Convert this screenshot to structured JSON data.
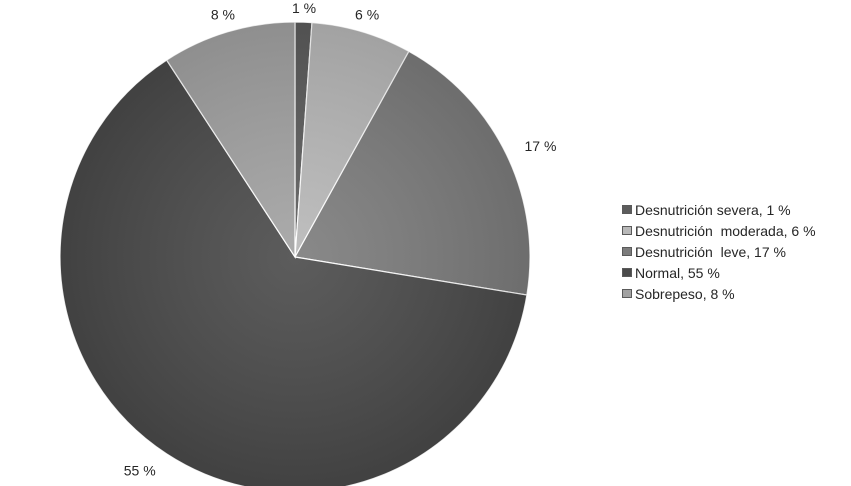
{
  "chart_data": {
    "type": "pie",
    "title": "",
    "slices": [
      {
        "label": "Desnutrición severa",
        "value": 1,
        "display": "1 %",
        "legend": "Desnutrición severa, 1 %",
        "color": "#5c5c5c"
      },
      {
        "label": "Desnutrición  moderada",
        "value": 6,
        "display": "6 %",
        "legend": "Desnutrición  moderada, 6 %",
        "color": "#b8b8b8"
      },
      {
        "label": "Desnutrición  leve",
        "value": 17,
        "display": "17 %",
        "legend": "Desnutrición  leve, 17 %",
        "color": "#7c7c7c"
      },
      {
        "label": "Normal",
        "value": 55,
        "display": "55 %",
        "legend": "Normal, 55 %",
        "color": "#4a4a4a"
      },
      {
        "label": "Sobrepeso",
        "value": 8,
        "display": "8 %",
        "legend": "Sobrepeso, 8 %",
        "color": "#a2a2a2"
      }
    ],
    "legend_position": "right"
  }
}
